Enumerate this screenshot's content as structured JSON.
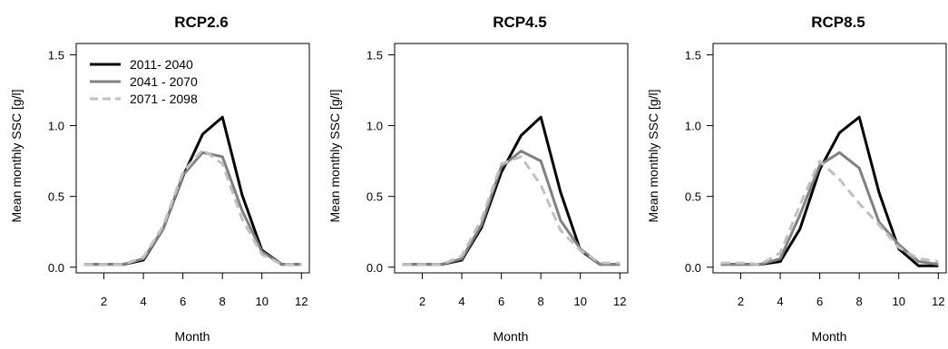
{
  "chart_data": [
    {
      "type": "line",
      "title": "RCP2.6",
      "xlabel": "Month",
      "ylabel": "Mean monthly SSC [g/l]",
      "x": [
        1,
        2,
        3,
        4,
        5,
        6,
        7,
        8,
        9,
        10,
        11,
        12
      ],
      "xticks": [
        "2",
        "4",
        "6",
        "8",
        "10",
        "12"
      ],
      "xtick_values": [
        2,
        4,
        6,
        8,
        10,
        12
      ],
      "yticks": [
        "0.0",
        "0.5",
        "1.0",
        "1.5"
      ],
      "ytick_values": [
        0,
        0.5,
        1.0,
        1.5
      ],
      "xlim": [
        0.6,
        12.4
      ],
      "ylim": [
        -0.04,
        1.58
      ],
      "legend": "top-left",
      "series": [
        {
          "name": "2011- 2040",
          "color": "#000000",
          "dash": "solid",
          "values": [
            0.02,
            0.02,
            0.02,
            0.05,
            0.27,
            0.64,
            0.94,
            1.06,
            0.51,
            0.12,
            0.02,
            0.02
          ]
        },
        {
          "name": "2041 - 2070",
          "color": "#808080",
          "dash": "solid",
          "values": [
            0.02,
            0.02,
            0.02,
            0.06,
            0.27,
            0.65,
            0.81,
            0.78,
            0.4,
            0.11,
            0.02,
            0.02
          ]
        },
        {
          "name": "2071 - 2098",
          "color": "#c0c0c0",
          "dash": "dashed",
          "values": [
            0.02,
            0.02,
            0.02,
            0.07,
            0.29,
            0.67,
            0.83,
            0.73,
            0.34,
            0.09,
            0.02,
            0.02
          ]
        }
      ]
    },
    {
      "type": "line",
      "title": "RCP4.5",
      "xlabel": "Month",
      "ylabel": "Mean monthly SSC [g/l]",
      "x": [
        1,
        2,
        3,
        4,
        5,
        6,
        7,
        8,
        9,
        10,
        11,
        12
      ],
      "xticks": [
        "2",
        "4",
        "6",
        "8",
        "10",
        "12"
      ],
      "xtick_values": [
        2,
        4,
        6,
        8,
        10,
        12
      ],
      "yticks": [
        "0.0",
        "0.5",
        "1.0",
        "1.5"
      ],
      "ytick_values": [
        0,
        0.5,
        1.0,
        1.5
      ],
      "xlim": [
        0.6,
        12.4
      ],
      "ylim": [
        -0.04,
        1.58
      ],
      "series": [
        {
          "name": "2011- 2040",
          "color": "#000000",
          "dash": "solid",
          "values": [
            0.02,
            0.02,
            0.02,
            0.05,
            0.28,
            0.67,
            0.93,
            1.06,
            0.53,
            0.12,
            0.02,
            0.02
          ]
        },
        {
          "name": "2041 - 2070",
          "color": "#808080",
          "dash": "solid",
          "values": [
            0.02,
            0.02,
            0.02,
            0.06,
            0.3,
            0.71,
            0.82,
            0.75,
            0.33,
            0.13,
            0.02,
            0.02
          ]
        },
        {
          "name": "2071 - 2098",
          "color": "#c0c0c0",
          "dash": "dashed",
          "values": [
            0.02,
            0.02,
            0.02,
            0.08,
            0.34,
            0.73,
            0.78,
            0.58,
            0.26,
            0.12,
            0.03,
            0.03
          ]
        }
      ]
    },
    {
      "type": "line",
      "title": "RCP8.5",
      "xlabel": "Month",
      "ylabel": "Mean monthly SSC [g/l]",
      "x": [
        1,
        2,
        3,
        4,
        5,
        6,
        7,
        8,
        9,
        10,
        11,
        12
      ],
      "xticks": [
        "2",
        "4",
        "6",
        "8",
        "10",
        "12"
      ],
      "xtick_values": [
        2,
        4,
        6,
        8,
        10,
        12
      ],
      "yticks": [
        "0.0",
        "0.5",
        "1.0",
        "1.5"
      ],
      "ytick_values": [
        0,
        0.5,
        1.0,
        1.5
      ],
      "xlim": [
        0.6,
        12.4
      ],
      "ylim": [
        -0.04,
        1.58
      ],
      "series": [
        {
          "name": "2011- 2040",
          "color": "#000000",
          "dash": "solid",
          "values": [
            0.02,
            0.02,
            0.02,
            0.04,
            0.27,
            0.69,
            0.95,
            1.06,
            0.53,
            0.13,
            0.01,
            0.01
          ]
        },
        {
          "name": "2041 - 2070",
          "color": "#808080",
          "dash": "solid",
          "values": [
            0.02,
            0.02,
            0.02,
            0.06,
            0.37,
            0.72,
            0.81,
            0.7,
            0.32,
            0.16,
            0.04,
            0.02
          ]
        },
        {
          "name": "2071 - 2098",
          "color": "#c0c0c0",
          "dash": "dashed",
          "values": [
            0.03,
            0.03,
            0.02,
            0.1,
            0.44,
            0.75,
            0.62,
            0.45,
            0.3,
            0.14,
            0.06,
            0.04
          ]
        }
      ]
    }
  ]
}
